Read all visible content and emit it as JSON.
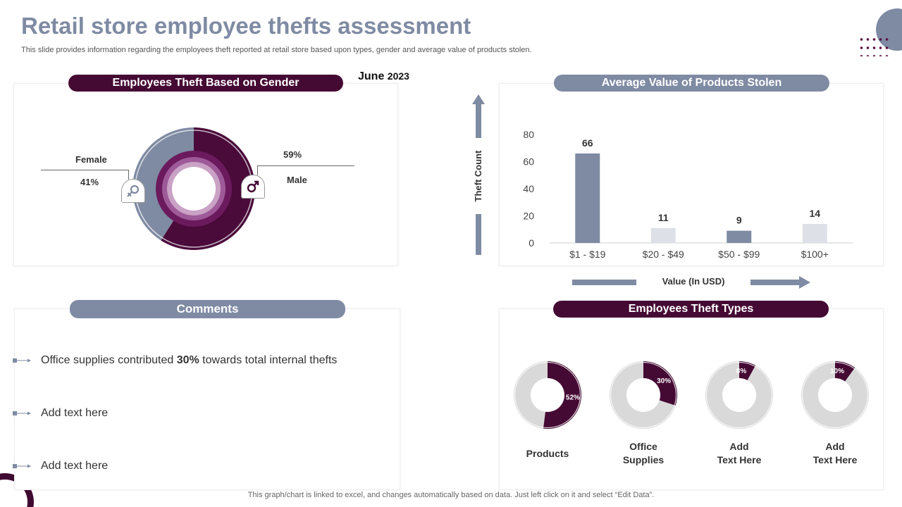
{
  "header": {
    "title": "Retail store employee thefts assessment",
    "subtitle": "This slide provides information regarding the employees theft reported at retail store based upon types, gender and average value of products stolen."
  },
  "date": {
    "month": "June",
    "year": "2023"
  },
  "gender_panel": {
    "title": "Employees Theft Based on Gender",
    "female_label": "Female",
    "female_value": "41%",
    "male_label": "Male",
    "male_value": "59%",
    "female_icon": "female-symbol-icon",
    "male_icon": "male-symbol-icon"
  },
  "value_panel": {
    "title": "Average Value of Products Stolen",
    "y_axis_title": "Theft Count",
    "x_axis_title": "Value (In USD)"
  },
  "comments_panel": {
    "title": "Comments",
    "items": [
      {
        "pre": "Office supplies contributed ",
        "bold": "30%",
        "post": " towards total internal thefts"
      },
      {
        "pre": "Add text here",
        "bold": "",
        "post": ""
      },
      {
        "pre": "Add text here",
        "bold": "",
        "post": ""
      }
    ]
  },
  "types_panel": {
    "title": "Employees Theft Types"
  },
  "footer": "This graph/chart is linked to excel,  and changes automatically based on data. Just left click on it and select “Edit Data”.",
  "colors": {
    "dark_plum": "#450a34",
    "slate": "#7f8ba3",
    "light_grey": "#d9d9d9",
    "bar_light": "#dde0e6",
    "female_slice": "#7f8ba3",
    "male_slice": "#4a0a3a",
    "inner_ring": "#9e5a98"
  },
  "chart_data": [
    {
      "type": "pie",
      "title": "Employees Theft Based on Gender",
      "categories": [
        "Female",
        "Male"
      ],
      "values": [
        41,
        59
      ],
      "unit": "%"
    },
    {
      "type": "bar",
      "title": "Average Value of Products Stolen",
      "categories": [
        "$1 - $19",
        "$20 - $49",
        "$50 - $99",
        "$100+"
      ],
      "values": [
        66,
        11,
        9,
        14
      ],
      "ylabel": "Theft Count",
      "xlabel": "Value (In USD)",
      "ylim": [
        0,
        80
      ],
      "yticks": [
        0,
        20,
        40,
        60,
        80
      ],
      "grid": false
    },
    {
      "type": "pie",
      "title": "Employees Theft Types",
      "categories": [
        "Products",
        "Office Supplies",
        "Add Text Here",
        "Add Text Here"
      ],
      "values": [
        52,
        30,
        8,
        10
      ],
      "value_labels": [
        "52%",
        "30%",
        "8%",
        "10%"
      ],
      "display_labels": [
        [
          "Products"
        ],
        [
          "Office",
          "Supplies"
        ],
        [
          "Add",
          "Text Here"
        ],
        [
          "Add",
          "Text Here"
        ]
      ],
      "unit": "%"
    }
  ]
}
